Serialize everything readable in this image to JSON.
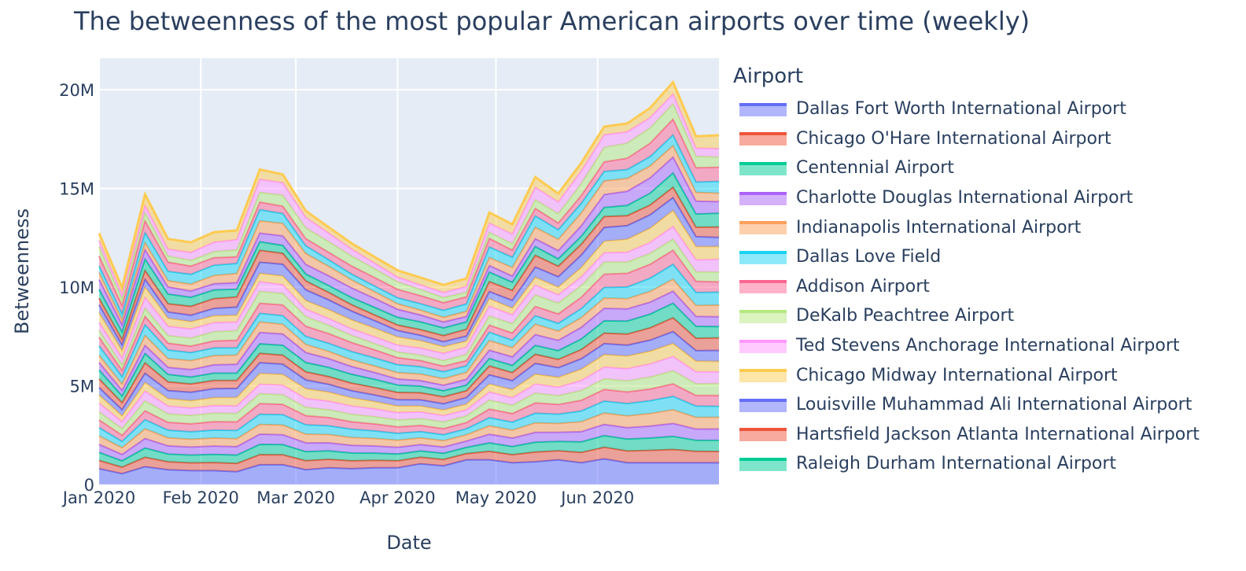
{
  "chart_data": {
    "type": "area",
    "title": "The betweenness of the most popular American airports over time (weekly)",
    "xlabel": "Date",
    "ylabel": "Betweenness",
    "x_ticks": [
      "Jan 2020",
      "Feb 2020",
      "Mar 2020",
      "Apr 2020",
      "May 2020",
      "Jun 2020"
    ],
    "y_ticks": [
      "0",
      "5M",
      "10M",
      "15M",
      "20M"
    ],
    "ylim": [
      0,
      20000000
    ],
    "stacked": true,
    "grid": true,
    "legend_title": "Airport",
    "legend_position": "right",
    "x": [
      "2020-01-01",
      "2020-01-08",
      "2020-01-15",
      "2020-01-22",
      "2020-01-29",
      "2020-02-05",
      "2020-02-12",
      "2020-02-19",
      "2020-02-26",
      "2020-03-04",
      "2020-03-11",
      "2020-03-18",
      "2020-03-25",
      "2020-04-01",
      "2020-04-08",
      "2020-04-15",
      "2020-04-22",
      "2020-04-29",
      "2020-05-06",
      "2020-05-13",
      "2020-05-20",
      "2020-05-27",
      "2020-06-03",
      "2020-06-10",
      "2020-06-17",
      "2020-06-24",
      "2020-07-01",
      "2020-07-08"
    ],
    "total": [
      12800000,
      10000000,
      14700000,
      12400000,
      12200000,
      12700000,
      12800000,
      15900000,
      15700000,
      13900000,
      12300000,
      10900000,
      10100000,
      10400000,
      13700000,
      13100000,
      15500000,
      14700000,
      16300000,
      18200000,
      18400000,
      19200000,
      20500000,
      17700000
    ],
    "total_x": [
      "2020-01-01",
      "2020-01-08",
      "2020-01-15",
      "2020-01-22",
      "2020-01-29",
      "2020-02-05",
      "2020-02-12",
      "2020-02-19",
      "2020-02-26",
      "2020-03-04",
      "2020-03-18",
      "2020-04-01",
      "2020-04-15",
      "2020-04-22",
      "2020-04-29",
      "2020-05-06",
      "2020-05-13",
      "2020-05-20",
      "2020-05-27",
      "2020-06-03",
      "2020-06-10",
      "2020-06-17",
      "2020-06-24",
      "2020-07-01"
    ],
    "series": [
      {
        "name": "Dallas Fort Worth International Airport",
        "color": "#636efa"
      },
      {
        "name": "Chicago O'Hare International Airport",
        "color": "#EF553B"
      },
      {
        "name": "Centennial Airport",
        "color": "#00cc96"
      },
      {
        "name": "Charlotte Douglas International Airport",
        "color": "#ab63fa"
      },
      {
        "name": "Indianapolis International Airport",
        "color": "#FFA15A"
      },
      {
        "name": "Dallas Love Field",
        "color": "#19d3f3"
      },
      {
        "name": "Addison Airport",
        "color": "#FF6692"
      },
      {
        "name": "DeKalb Peachtree Airport",
        "color": "#B6E880"
      },
      {
        "name": "Ted Stevens Anchorage International Airport",
        "color": "#FF97FF"
      },
      {
        "name": "Chicago Midway International Airport",
        "color": "#FECB52"
      },
      {
        "name": "Louisville Muhammad Ali International Airport",
        "color": "#636efa"
      },
      {
        "name": "Hartsfield Jackson Atlanta International Airport",
        "color": "#EF553B"
      },
      {
        "name": "Raleigh Durham International Airport",
        "color": "#00cc96"
      }
    ],
    "dfw_values": [
      800000,
      550000,
      900000,
      750000,
      700000,
      700000,
      650000,
      1000000,
      1000000,
      750000,
      850000,
      800000,
      850000,
      850000,
      1050000,
      950000,
      1250000,
      1250000,
      1100000,
      1150000,
      1250000,
      1100000,
      1300000,
      1100000
    ]
  }
}
